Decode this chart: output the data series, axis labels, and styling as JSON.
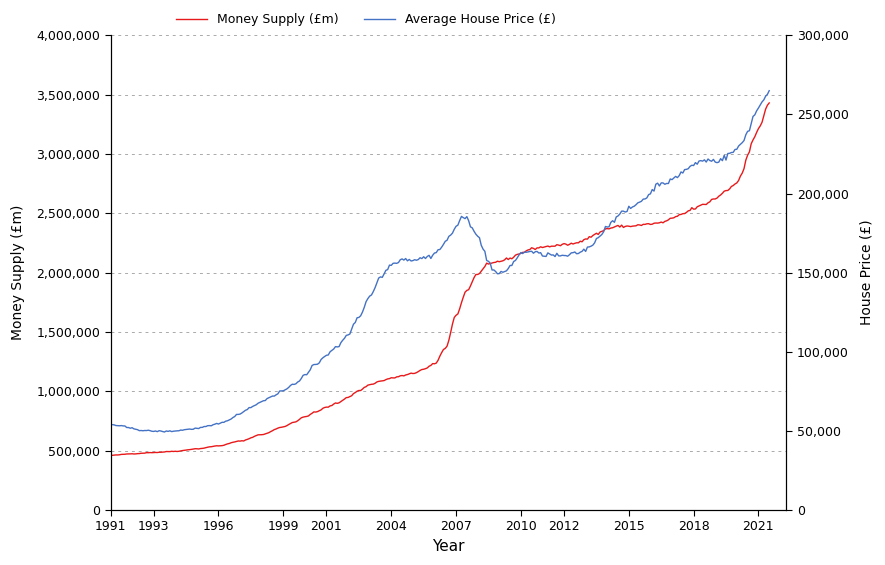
{
  "xlabel": "Year",
  "ylabel_left": "Money Supply (£m)",
  "ylabel_right": "House Price (£)",
  "legend_money": "Money Supply (£m)",
  "legend_house": "Average House Price (£)",
  "money_color": "#e8191a",
  "house_color": "#4472c4",
  "background_color": "#ffffff",
  "ylim_left": [
    0,
    4000000
  ],
  "ylim_right": [
    0,
    300000
  ],
  "xlim_left": 1991.0,
  "xlim_right": 2022.3,
  "xticks": [
    1991,
    1993,
    1996,
    1999,
    2001,
    2004,
    2007,
    2010,
    2012,
    2015,
    2018,
    2021
  ],
  "yticks_left": [
    0,
    500000,
    1000000,
    1500000,
    2000000,
    2500000,
    3000000,
    3500000,
    4000000
  ],
  "yticks_right": [
    0,
    50000,
    100000,
    150000,
    200000,
    250000,
    300000
  ]
}
